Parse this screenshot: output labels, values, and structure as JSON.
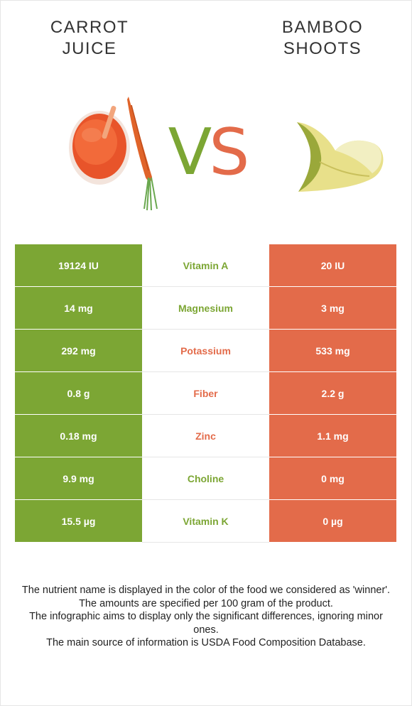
{
  "foods": {
    "left": {
      "name_line1": "CARROT",
      "name_line2": "JUICE",
      "color": "#7ca634"
    },
    "right": {
      "name_line1": "BAMBOO",
      "name_line2": "SHOOTS",
      "color": "#e36b4a"
    }
  },
  "vs": {
    "v": "V",
    "s": "S"
  },
  "nutrients": [
    {
      "left": "19124 IU",
      "name": "Vitamin A",
      "right": "20 IU",
      "winner": "left"
    },
    {
      "left": "14 mg",
      "name": "Magnesium",
      "right": "3 mg",
      "winner": "left"
    },
    {
      "left": "292 mg",
      "name": "Potassium",
      "right": "533 mg",
      "winner": "right"
    },
    {
      "left": "0.8 g",
      "name": "Fiber",
      "right": "2.2 g",
      "winner": "right"
    },
    {
      "left": "0.18 mg",
      "name": "Zinc",
      "right": "1.1 mg",
      "winner": "right"
    },
    {
      "left": "9.9 mg",
      "name": "Choline",
      "right": "0 mg",
      "winner": "left"
    },
    {
      "left": "15.5 µg",
      "name": "Vitamin K",
      "right": "0 µg",
      "winner": "left"
    }
  ],
  "notes": [
    "The nutrient name is displayed in the color of the food we considered as 'winner'.",
    "The amounts are specified per 100 gram of the product.",
    "The infographic aims to display only the significant differences, ignoring minor ones.",
    "The main source of information is USDA Food Composition Database."
  ]
}
